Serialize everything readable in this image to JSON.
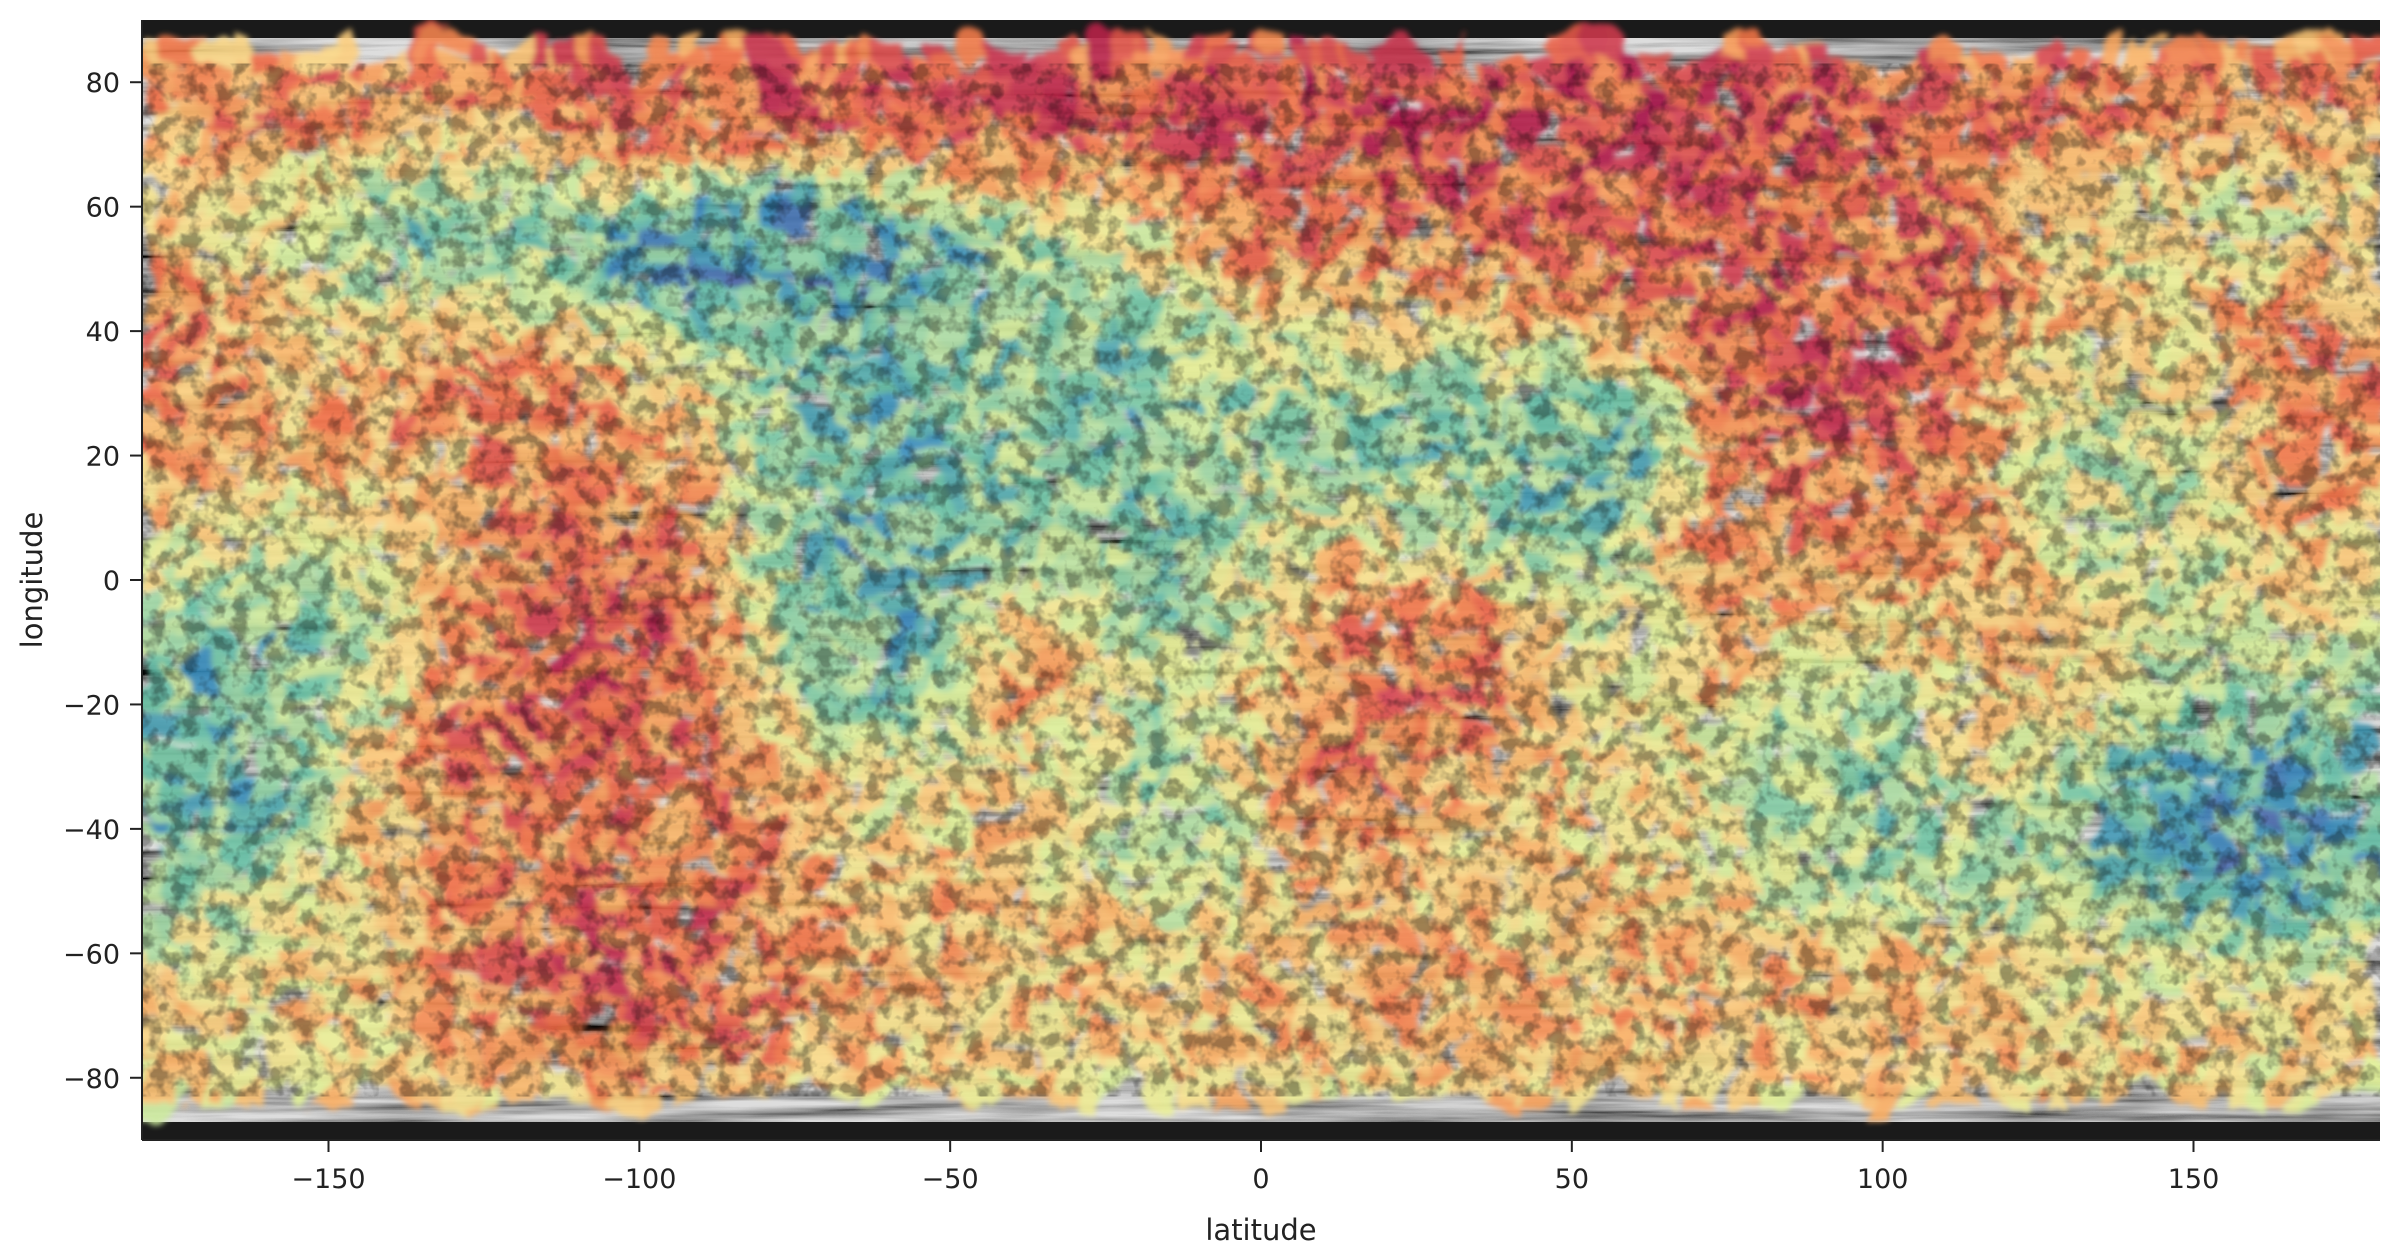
{
  "chart_data": {
    "type": "heatmap",
    "title": "",
    "xlabel": "latitude",
    "ylabel": "longitude",
    "xlim": [
      -180,
      180
    ],
    "ylim": [
      -90,
      90
    ],
    "xticks": [
      -150,
      -100,
      -50,
      0,
      50,
      100,
      150
    ],
    "yticks": [
      -80,
      -60,
      -40,
      -20,
      0,
      20,
      40,
      60,
      80
    ],
    "xtick_labels": [
      "−150",
      "−100",
      "−50",
      "0",
      "50",
      "100",
      "150"
    ],
    "ytick_labels": [
      "−80",
      "−60",
      "−40",
      "−20",
      "0",
      "20",
      "40",
      "60",
      "80"
    ],
    "grid": false,
    "legend": "none",
    "colormap": "Spectral_r",
    "colormap_stops": [
      "#5e4fa2",
      "#3288bd",
      "#66c2a5",
      "#abdda4",
      "#e6f598",
      "#fee08b",
      "#fdae61",
      "#f46d43",
      "#d53e4f",
      "#9e0142"
    ],
    "background_basemap": "grayscale relief map",
    "basemap_colors": [
      "#1a1a1a",
      "#9a9a9a",
      "#e8e8e8"
    ],
    "mask_bounds_lat": [
      -83,
      83
    ],
    "hotspots": [
      {
        "lon": 10,
        "lat": 76,
        "value": 0.95,
        "sx": 110,
        "sy": 8
      },
      {
        "lon": -20,
        "lat": 82,
        "value": 0.85,
        "sx": 70,
        "sy": 4
      },
      {
        "lon": 60,
        "lat": 75,
        "value": 0.88,
        "sx": 60,
        "sy": 8
      },
      {
        "lon": 40,
        "lat": 58,
        "value": 0.9,
        "sx": 45,
        "sy": 9
      },
      {
        "lon": 100,
        "lat": 52,
        "value": 0.85,
        "sx": 35,
        "sy": 9
      },
      {
        "lon": 65,
        "lat": 40,
        "value": 0.9,
        "sx": 20,
        "sy": 9
      },
      {
        "lon": 95,
        "lat": 33,
        "value": 0.92,
        "sx": 14,
        "sy": 10
      },
      {
        "lon": 108,
        "lat": 12,
        "value": 0.8,
        "sx": 18,
        "sy": 18
      },
      {
        "lon": 165,
        "lat": 36,
        "value": 0.88,
        "sx": 18,
        "sy": 14
      },
      {
        "lon": 130,
        "lat": 70,
        "value": 0.75,
        "sx": 25,
        "sy": 10
      },
      {
        "lon": -130,
        "lat": 35,
        "value": 0.85,
        "sx": 12,
        "sy": 10
      },
      {
        "lon": -105,
        "lat": -10,
        "value": 0.95,
        "sx": 14,
        "sy": 20
      },
      {
        "lon": -100,
        "lat": -60,
        "value": 0.92,
        "sx": 20,
        "sy": 12
      },
      {
        "lon": -130,
        "lat": -30,
        "value": 0.8,
        "sx": 12,
        "sy": 10
      },
      {
        "lon": 28,
        "lat": -10,
        "value": 0.92,
        "sx": 12,
        "sy": 12
      },
      {
        "lon": 12,
        "lat": -33,
        "value": 0.88,
        "sx": 10,
        "sy": 8
      },
      {
        "lon": 78,
        "lat": 2,
        "value": 0.8,
        "sx": 15,
        "sy": 15
      },
      {
        "lon": 118,
        "lat": -25,
        "value": 0.85,
        "sx": 12,
        "sy": 12
      },
      {
        "lon": -35,
        "lat": -12,
        "value": 0.85,
        "sx": 7,
        "sy": 9
      },
      {
        "lon": -87,
        "lat": -37,
        "value": 0.82,
        "sx": 12,
        "sy": 10
      },
      {
        "lon": -180,
        "lat": 20,
        "value": 0.7,
        "sx": 20,
        "sy": 20
      },
      {
        "lon": 90,
        "lat": -65,
        "value": 0.7,
        "sx": 60,
        "sy": 10
      },
      {
        "lon": -40,
        "lat": -50,
        "value": 0.68,
        "sx": 30,
        "sy": 14
      },
      {
        "lon": 60,
        "lat": -45,
        "value": 0.6,
        "sx": 30,
        "sy": 14
      }
    ],
    "coldspots": [
      {
        "lon": -65,
        "lat": 52,
        "value": 0.05,
        "sx": 22,
        "sy": 9
      },
      {
        "lon": -90,
        "lat": 55,
        "value": 0.1,
        "sx": 12,
        "sy": 7
      },
      {
        "lon": -60,
        "lat": 5,
        "value": 0.12,
        "sx": 14,
        "sy": 24
      },
      {
        "lon": -165,
        "lat": -15,
        "value": 0.08,
        "sx": 14,
        "sy": 16
      },
      {
        "lon": -130,
        "lat": 55,
        "value": 0.15,
        "sx": 12,
        "sy": 10
      },
      {
        "lon": 58,
        "lat": 26,
        "value": 0.05,
        "sx": 8,
        "sy": 8
      },
      {
        "lon": 52,
        "lat": 10,
        "value": 0.12,
        "sx": 10,
        "sy": 14
      },
      {
        "lon": 100,
        "lat": -30,
        "value": 0.05,
        "sx": 16,
        "sy": 16
      },
      {
        "lon": 148,
        "lat": -42,
        "value": 0.03,
        "sx": 25,
        "sy": 14
      },
      {
        "lon": 150,
        "lat": 58,
        "value": 0.15,
        "sx": 18,
        "sy": 10
      },
      {
        "lon": 140,
        "lat": 20,
        "value": 0.15,
        "sx": 14,
        "sy": 14
      },
      {
        "lon": -15,
        "lat": -40,
        "value": 0.1,
        "sx": 10,
        "sy": 10
      },
      {
        "lon": 30,
        "lat": 25,
        "value": 0.2,
        "sx": 15,
        "sy": 15
      },
      {
        "lon": -20,
        "lat": 20,
        "value": 0.18,
        "sx": 10,
        "sy": 25
      }
    ]
  }
}
